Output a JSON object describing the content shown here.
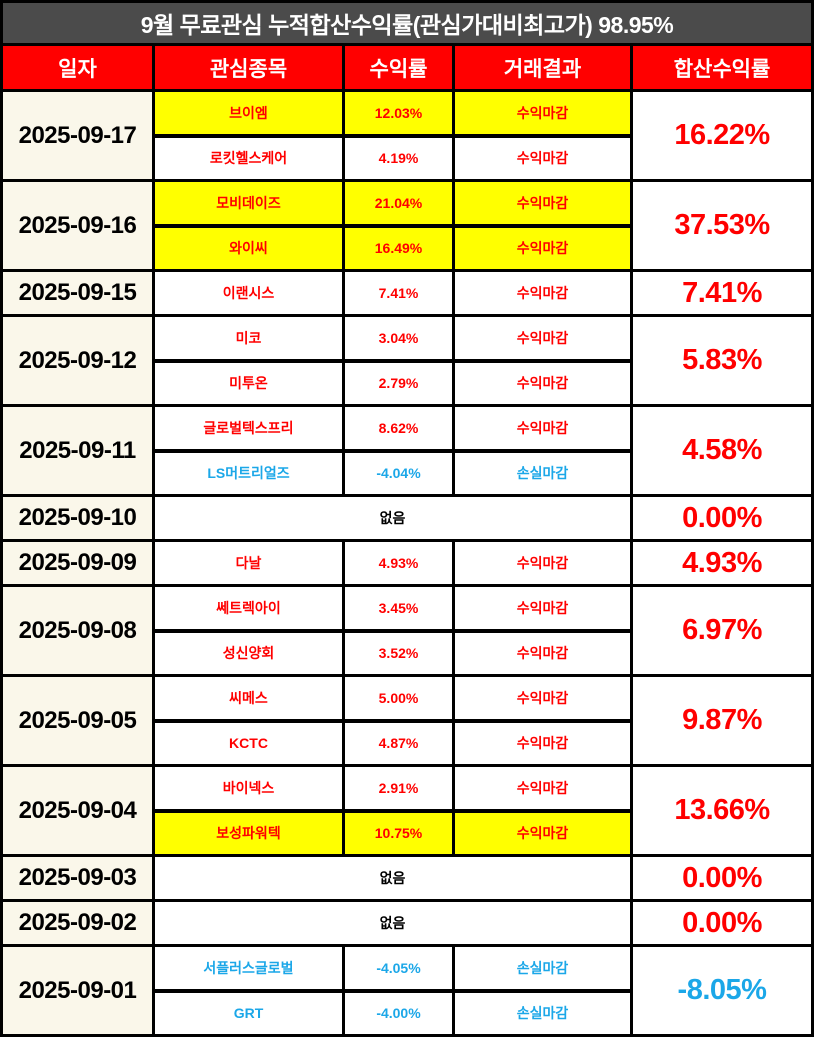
{
  "title": "9월 무료관심 누적합산수익률(관심가대비최고가) 98.95%",
  "colors": {
    "title_bg": "#4B4B4B",
    "header_bg": "#FF0000",
    "date_bg": "#FAF7EA",
    "highlight_bg": "#FFFF00",
    "profit_text": "#FF0000",
    "loss_text": "#1BA7E8",
    "border": "#000000"
  },
  "chart_data": {
    "type": "table",
    "title": "9월 무료관심 누적합산수익률(관심가대비최고가) 98.95%",
    "cumulative_return_pct": 98.95,
    "columns": [
      "일자",
      "관심종목",
      "수익률",
      "거래결과",
      "합산수익률"
    ],
    "empty_label": "없음",
    "rows": [
      {
        "date": "2025-09-17",
        "total": "16.22%",
        "tone": "profit",
        "stocks": [
          {
            "name": "브이엠",
            "return": "12.03%",
            "result": "수익마감",
            "tone": "profit",
            "highlight": true
          },
          {
            "name": "로킷헬스케어",
            "return": "4.19%",
            "result": "수익마감",
            "tone": "profit",
            "highlight": false
          }
        ]
      },
      {
        "date": "2025-09-16",
        "total": "37.53%",
        "tone": "profit",
        "stocks": [
          {
            "name": "모비데이즈",
            "return": "21.04%",
            "result": "수익마감",
            "tone": "profit",
            "highlight": true
          },
          {
            "name": "와이씨",
            "return": "16.49%",
            "result": "수익마감",
            "tone": "profit",
            "highlight": true
          }
        ]
      },
      {
        "date": "2025-09-15",
        "total": "7.41%",
        "tone": "profit",
        "stocks": [
          {
            "name": "이랜시스",
            "return": "7.41%",
            "result": "수익마감",
            "tone": "profit",
            "highlight": false
          }
        ]
      },
      {
        "date": "2025-09-12",
        "total": "5.83%",
        "tone": "profit",
        "stocks": [
          {
            "name": "미코",
            "return": "3.04%",
            "result": "수익마감",
            "tone": "profit",
            "highlight": false
          },
          {
            "name": "미투온",
            "return": "2.79%",
            "result": "수익마감",
            "tone": "profit",
            "highlight": false
          }
        ]
      },
      {
        "date": "2025-09-11",
        "total": "4.58%",
        "tone": "profit",
        "stocks": [
          {
            "name": "글로벌텍스프리",
            "return": "8.62%",
            "result": "수익마감",
            "tone": "profit",
            "highlight": false
          },
          {
            "name": "LS머트리얼즈",
            "return": "-4.04%",
            "result": "손실마감",
            "tone": "loss",
            "highlight": false
          }
        ]
      },
      {
        "date": "2025-09-10",
        "total": "0.00%",
        "tone": "profit",
        "empty": true,
        "stocks": []
      },
      {
        "date": "2025-09-09",
        "total": "4.93%",
        "tone": "profit",
        "stocks": [
          {
            "name": "다날",
            "return": "4.93%",
            "result": "수익마감",
            "tone": "profit",
            "highlight": false
          }
        ]
      },
      {
        "date": "2025-09-08",
        "total": "6.97%",
        "tone": "profit",
        "stocks": [
          {
            "name": "쎄트렉아이",
            "return": "3.45%",
            "result": "수익마감",
            "tone": "profit",
            "highlight": false
          },
          {
            "name": "성신양회",
            "return": "3.52%",
            "result": "수익마감",
            "tone": "profit",
            "highlight": false
          }
        ]
      },
      {
        "date": "2025-09-05",
        "total": "9.87%",
        "tone": "profit",
        "stocks": [
          {
            "name": "씨메스",
            "return": "5.00%",
            "result": "수익마감",
            "tone": "profit",
            "highlight": false
          },
          {
            "name": "KCTC",
            "return": "4.87%",
            "result": "수익마감",
            "tone": "profit",
            "highlight": false
          }
        ]
      },
      {
        "date": "2025-09-04",
        "total": "13.66%",
        "tone": "profit",
        "stocks": [
          {
            "name": "바이넥스",
            "return": "2.91%",
            "result": "수익마감",
            "tone": "profit",
            "highlight": false
          },
          {
            "name": "보성파워텍",
            "return": "10.75%",
            "result": "수익마감",
            "tone": "profit",
            "highlight": true
          }
        ]
      },
      {
        "date": "2025-09-03",
        "total": "0.00%",
        "tone": "profit",
        "empty": true,
        "stocks": []
      },
      {
        "date": "2025-09-02",
        "total": "0.00%",
        "tone": "profit",
        "empty": true,
        "stocks": []
      },
      {
        "date": "2025-09-01",
        "total": "-8.05%",
        "tone": "loss",
        "stocks": [
          {
            "name": "서플러스글로벌",
            "return": "-4.05%",
            "result": "손실마감",
            "tone": "loss",
            "highlight": false
          },
          {
            "name": "GRT",
            "return": "-4.00%",
            "result": "손실마감",
            "tone": "loss",
            "highlight": false
          }
        ]
      }
    ]
  }
}
